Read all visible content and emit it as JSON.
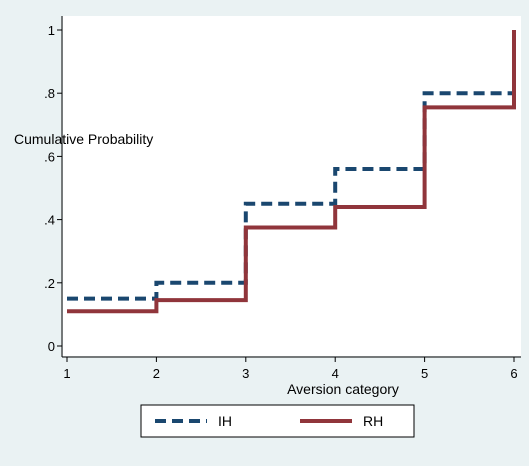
{
  "chart_data": {
    "type": "line",
    "step": "post",
    "xlabel": "Aversion category",
    "ylabel": "Cumulative Probability",
    "xlim": [
      1,
      6
    ],
    "ylim": [
      0,
      1
    ],
    "x_ticks": [
      1,
      2,
      3,
      4,
      5,
      6
    ],
    "x_tick_labels": [
      "1",
      "2",
      "3",
      "4",
      "5",
      "6"
    ],
    "y_ticks": [
      0,
      0.2,
      0.4,
      0.6,
      0.8,
      1
    ],
    "y_tick_labels": [
      "0",
      ".2",
      ".4",
      ".6",
      ".8",
      "1"
    ],
    "grid": false,
    "legend_position": "bottom",
    "x": [
      1,
      2,
      3,
      4,
      5,
      6
    ],
    "series": [
      {
        "name": "IH",
        "values": [
          0.15,
          0.2,
          0.45,
          0.56,
          0.8,
          1.0
        ],
        "color": "#1a476f",
        "dash": "dashed"
      },
      {
        "name": "RH",
        "values": [
          0.11,
          0.145,
          0.375,
          0.44,
          0.755,
          1.0
        ],
        "color": "#90353b",
        "dash": "solid"
      }
    ]
  },
  "colors": {
    "background": "#eaf2f3",
    "plot_region": "#ffffff",
    "axis": "#000000"
  }
}
